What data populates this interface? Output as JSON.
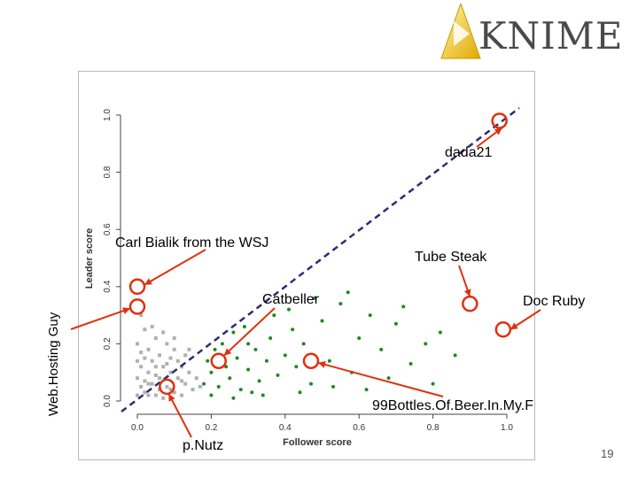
{
  "slide": {
    "logo_text": "KNIME",
    "page_number": "19",
    "outer_ylabel": "Web.Hosting Guy"
  },
  "chart_data": {
    "type": "scatter",
    "xlabel": "Follower score",
    "ylabel": "Leader score",
    "xlim": [
      0.0,
      1.0
    ],
    "ylim": [
      0.0,
      1.0
    ],
    "xticks": [
      "0.0",
      "0.2",
      "0.4",
      "0.6",
      "0.8",
      "1.0"
    ],
    "yticks": [
      "0.0",
      "0.2",
      "0.4",
      "0.6",
      "0.8",
      "1.0"
    ],
    "grid": false,
    "diagonal_line": {
      "from": [
        0.0,
        0.0
      ],
      "to": [
        1.0,
        1.0
      ],
      "style": "dashed",
      "color": "#2b2b7a"
    },
    "series": [
      {
        "color": "#b0b0b0",
        "points": [
          [
            0.0,
            0.02
          ],
          [
            0.01,
            0.05
          ],
          [
            0.02,
            0.03
          ],
          [
            0.0,
            0.08
          ],
          [
            0.03,
            0.1
          ],
          [
            0.01,
            0.12
          ],
          [
            0.04,
            0.06
          ],
          [
            0.02,
            0.15
          ],
          [
            0.05,
            0.02
          ],
          [
            0.06,
            0.08
          ],
          [
            0.03,
            0.18
          ],
          [
            0.0,
            0.2
          ],
          [
            0.07,
            0.12
          ],
          [
            0.08,
            0.05
          ],
          [
            0.04,
            0.14
          ],
          [
            0.09,
            0.1
          ],
          [
            0.1,
            0.03
          ],
          [
            0.05,
            0.22
          ],
          [
            0.11,
            0.08
          ],
          [
            0.06,
            0.16
          ],
          [
            0.12,
            0.12
          ],
          [
            0.02,
            0.25
          ],
          [
            0.13,
            0.06
          ],
          [
            0.08,
            0.2
          ],
          [
            0.14,
            0.1
          ],
          [
            0.15,
            0.04
          ],
          [
            0.01,
            0.3
          ],
          [
            0.1,
            0.18
          ],
          [
            0.03,
            0.02
          ],
          [
            0.07,
            0.01
          ],
          [
            0.09,
            0.15
          ],
          [
            0.12,
            0.02
          ],
          [
            0.16,
            0.08
          ],
          [
            0.05,
            0.09
          ],
          [
            0.0,
            0.14
          ],
          [
            0.04,
            0.26
          ],
          [
            0.11,
            0.14
          ],
          [
            0.13,
            0.16
          ],
          [
            0.06,
            0.04
          ],
          [
            0.02,
            0.07
          ],
          [
            0.17,
            0.05
          ],
          [
            0.08,
            0.13
          ],
          [
            0.1,
            0.22
          ],
          [
            0.03,
            0.06
          ],
          [
            0.14,
            0.18
          ],
          [
            0.07,
            0.24
          ],
          [
            0.01,
            0.17
          ],
          [
            0.12,
            0.07
          ],
          [
            0.05,
            0.12
          ],
          [
            0.09,
            0.04
          ]
        ]
      },
      {
        "color": "#1f8a1f",
        "points": [
          [
            0.18,
            0.06
          ],
          [
            0.2,
            0.1
          ],
          [
            0.22,
            0.05
          ],
          [
            0.24,
            0.12
          ],
          [
            0.25,
            0.08
          ],
          [
            0.27,
            0.15
          ],
          [
            0.28,
            0.04
          ],
          [
            0.3,
            0.11
          ],
          [
            0.32,
            0.18
          ],
          [
            0.33,
            0.07
          ],
          [
            0.35,
            0.14
          ],
          [
            0.36,
            0.22
          ],
          [
            0.38,
            0.09
          ],
          [
            0.4,
            0.16
          ],
          [
            0.42,
            0.25
          ],
          [
            0.43,
            0.12
          ],
          [
            0.45,
            0.2
          ],
          [
            0.47,
            0.06
          ],
          [
            0.5,
            0.28
          ],
          [
            0.52,
            0.14
          ],
          [
            0.55,
            0.34
          ],
          [
            0.58,
            0.1
          ],
          [
            0.6,
            0.22
          ],
          [
            0.63,
            0.3
          ],
          [
            0.66,
            0.18
          ],
          [
            0.7,
            0.27
          ],
          [
            0.74,
            0.13
          ],
          [
            0.78,
            0.2
          ],
          [
            0.82,
            0.24
          ],
          [
            0.19,
            0.14
          ],
          [
            0.21,
            0.18
          ],
          [
            0.23,
            0.2
          ],
          [
            0.26,
            0.24
          ],
          [
            0.29,
            0.26
          ],
          [
            0.31,
            0.03
          ],
          [
            0.34,
            0.02
          ],
          [
            0.37,
            0.3
          ],
          [
            0.41,
            0.32
          ],
          [
            0.44,
            0.03
          ],
          [
            0.48,
            0.36
          ],
          [
            0.53,
            0.05
          ],
          [
            0.57,
            0.38
          ],
          [
            0.62,
            0.04
          ],
          [
            0.68,
            0.08
          ],
          [
            0.72,
            0.33
          ],
          [
            0.8,
            0.06
          ],
          [
            0.86,
            0.16
          ],
          [
            0.2,
            0.02
          ],
          [
            0.26,
            0.01
          ],
          [
            0.3,
            0.2
          ]
        ]
      }
    ],
    "annotations": [
      {
        "label": "dada21",
        "x": 0.98,
        "y": 0.98
      },
      {
        "label": "Carl Bialik from the WSJ",
        "x": 0.0,
        "y": 0.4
      },
      {
        "label": "Web.Hosting Guy",
        "x": 0.0,
        "y": 0.33
      },
      {
        "label": "Tube Steak",
        "x": 0.9,
        "y": 0.34
      },
      {
        "label": "Catbeller",
        "x": 0.22,
        "y": 0.14
      },
      {
        "label": "Doc Ruby",
        "x": 0.99,
        "y": 0.25
      },
      {
        "label": "99Bottles.Of.Beer.In.My.F",
        "x": 0.47,
        "y": 0.14
      },
      {
        "label": "p.Nutz",
        "x": 0.08,
        "y": 0.05
      }
    ]
  }
}
